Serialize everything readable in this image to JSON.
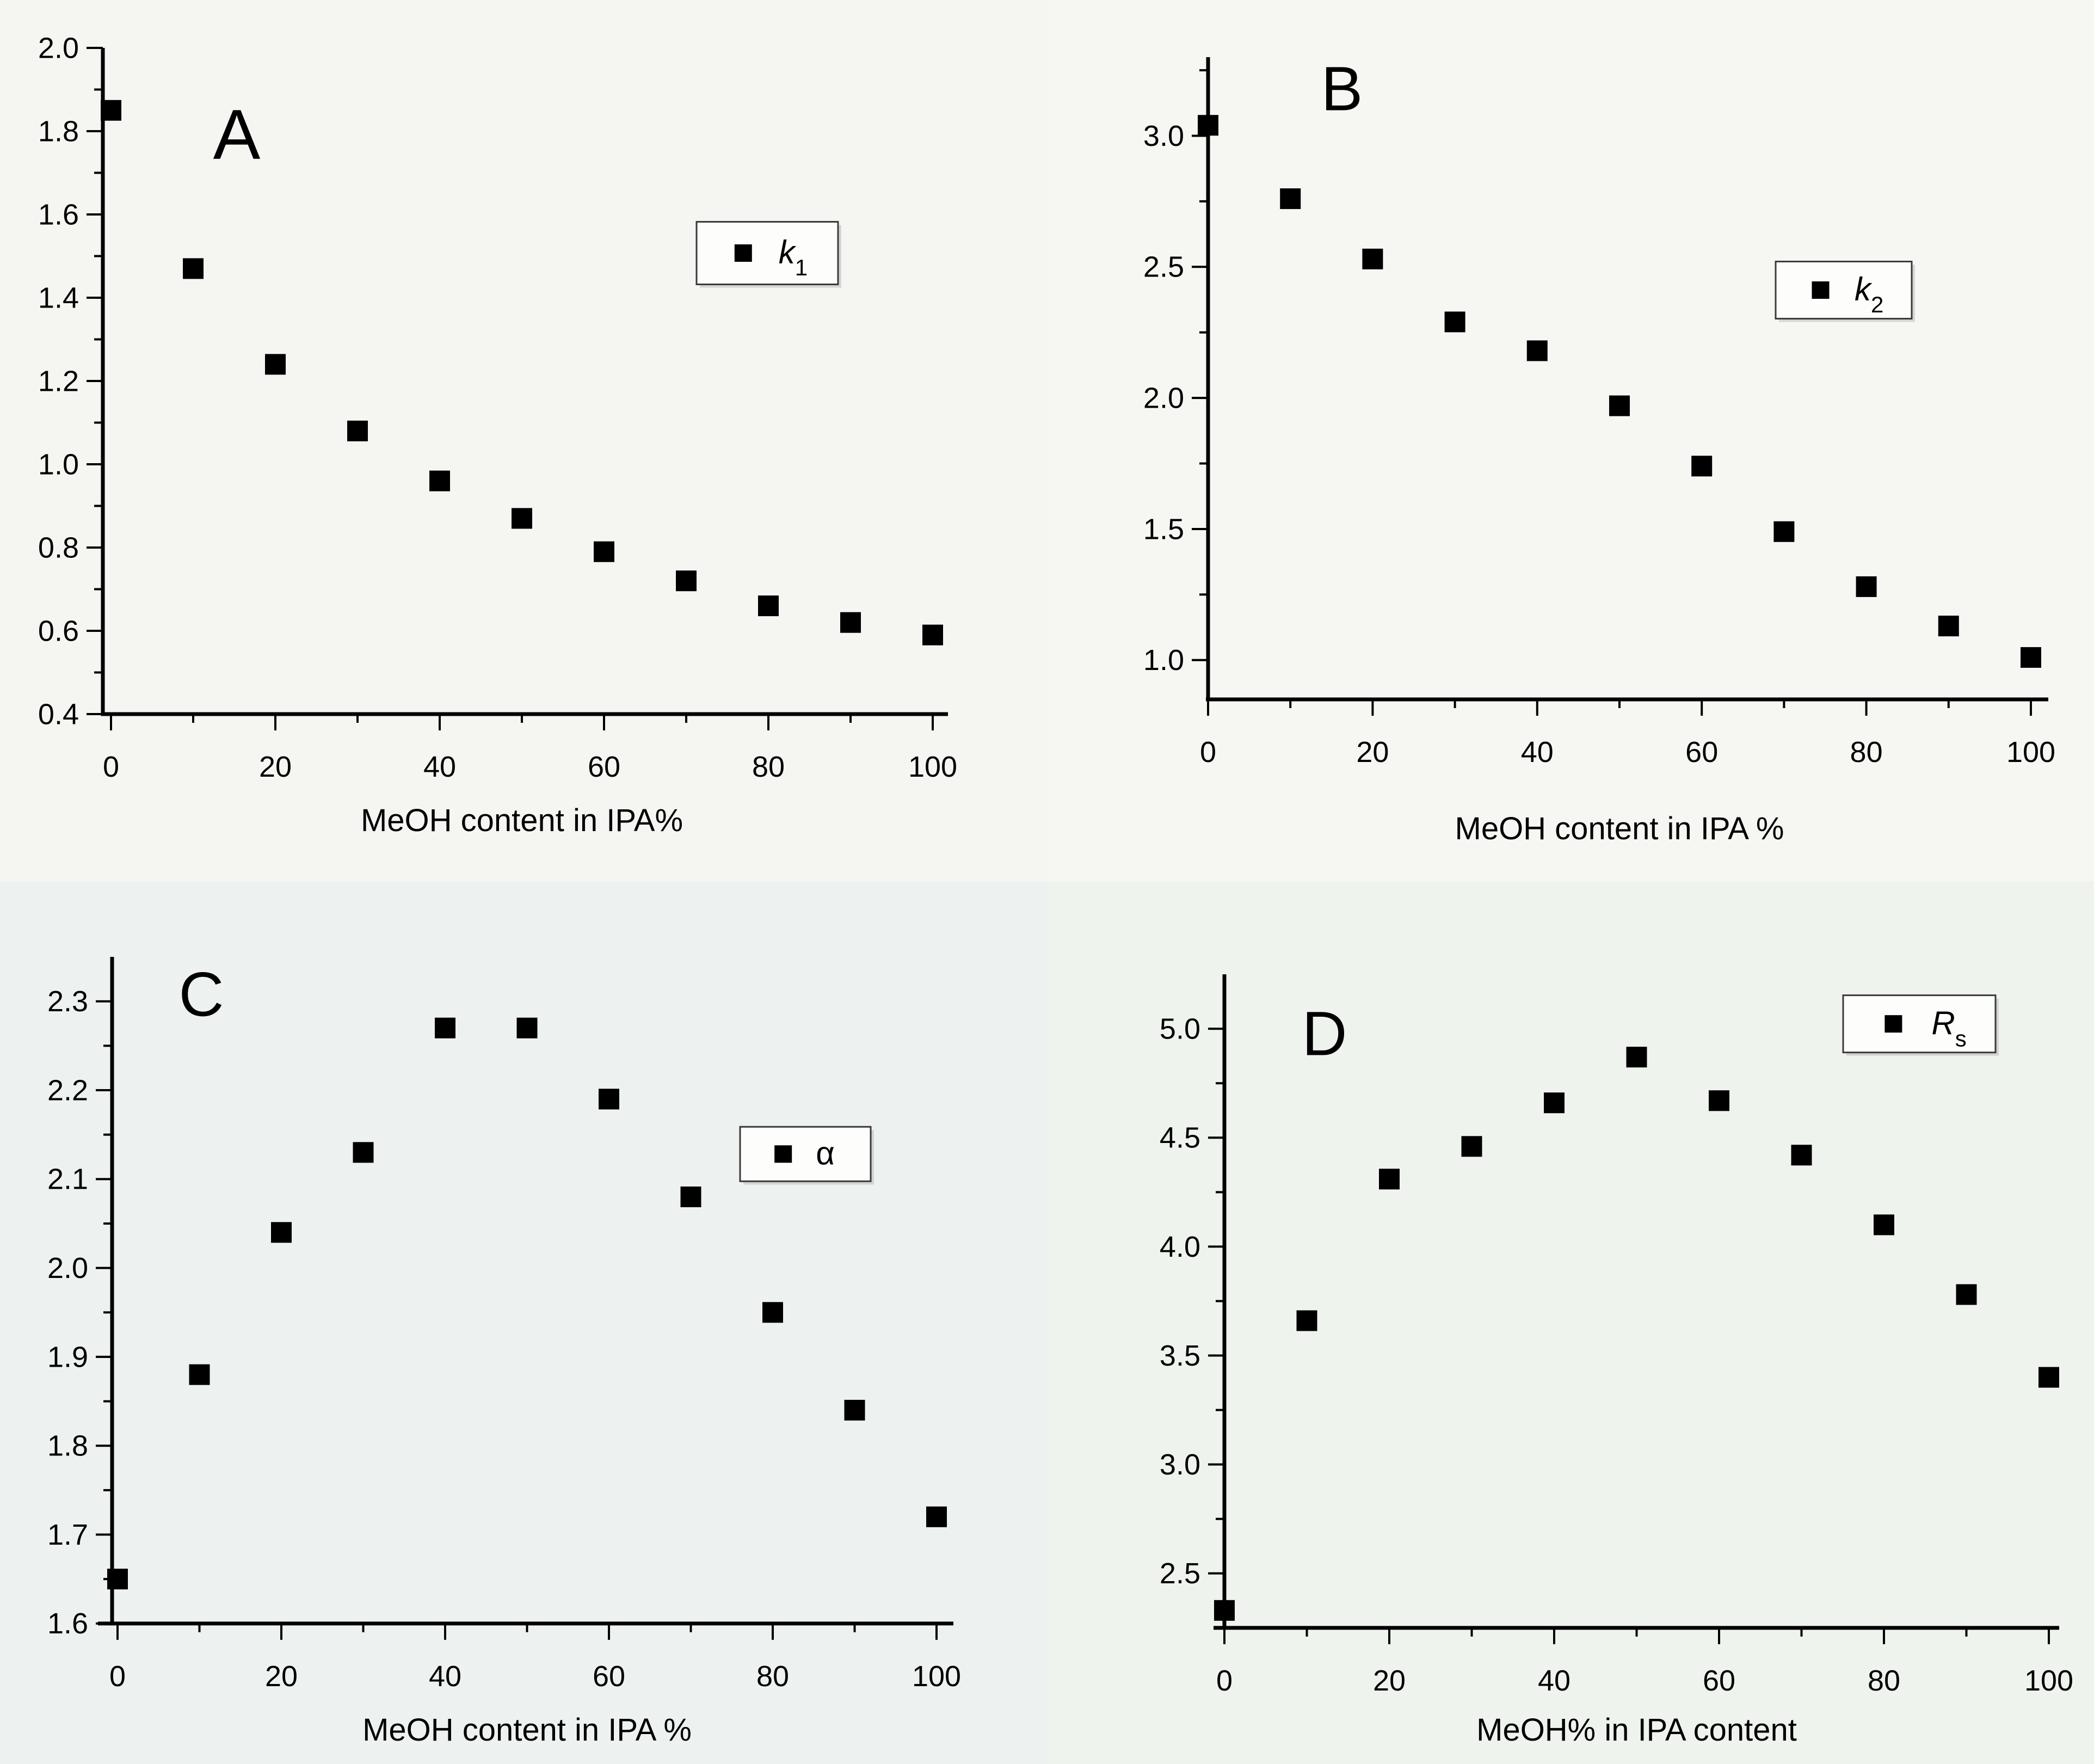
{
  "chart_data": [
    {
      "type": "scatter",
      "panel_label": "A",
      "legend": {
        "main": "k",
        "sub": "1",
        "italic": true
      },
      "xlabel": "MeOH content in IPA%",
      "x": [
        0,
        10,
        20,
        30,
        40,
        50,
        60,
        70,
        80,
        90,
        100
      ],
      "y": [
        1.85,
        1.47,
        1.24,
        1.08,
        0.96,
        0.87,
        0.79,
        0.72,
        0.66,
        0.62,
        0.59
      ],
      "xlim": [
        0,
        100
      ],
      "ylim_draw": [
        0.4,
        2.0
      ],
      "x_ticks": [
        0,
        20,
        40,
        60,
        80,
        100
      ],
      "x_tick_labels": [
        "0",
        "20",
        "40",
        "60",
        "80",
        "100"
      ],
      "x_minor_ticks": [
        10,
        30,
        50,
        70,
        90
      ],
      "y_ticks": [
        0.4,
        0.6,
        0.8,
        1.0,
        1.2,
        1.4,
        1.6,
        1.8,
        2.0
      ],
      "y_tick_labels": [
        "0.4",
        "0.6",
        "0.8",
        "1.0",
        "1.2",
        "1.4",
        "1.6",
        "1.8",
        "2.0"
      ],
      "y_minor_ticks": [
        0.5,
        0.7,
        0.9,
        1.1,
        1.3,
        1.5,
        1.7,
        1.9
      ],
      "grid": false,
      "legend_position": "upper-right-inside",
      "marker": "square",
      "marker_color": "#000000",
      "bg_color": "#f5f5f2"
    },
    {
      "type": "scatter",
      "panel_label": "B",
      "legend": {
        "main": "k",
        "sub": "2",
        "italic": true
      },
      "xlabel": "MeOH content in IPA %",
      "x": [
        0,
        10,
        20,
        30,
        40,
        50,
        60,
        70,
        80,
        90,
        100
      ],
      "y": [
        3.04,
        2.76,
        2.53,
        2.29,
        2.18,
        1.97,
        1.74,
        1.49,
        1.28,
        1.13,
        1.01
      ],
      "xlim": [
        0,
        100
      ],
      "ylim_draw": [
        0.85,
        3.3
      ],
      "x_ticks": [
        0,
        20,
        40,
        60,
        80,
        100
      ],
      "x_tick_labels": [
        "0",
        "20",
        "40",
        "60",
        "80",
        "100"
      ],
      "x_minor_ticks": [
        10,
        30,
        50,
        70,
        90
      ],
      "y_ticks": [
        1.0,
        1.5,
        2.0,
        2.5,
        3.0
      ],
      "y_tick_labels": [
        "1.0",
        "1.5",
        "2.0",
        "2.5",
        "3.0"
      ],
      "y_minor_ticks": [
        1.25,
        1.75,
        2.25,
        2.75,
        3.25
      ],
      "grid": false,
      "legend_position": "right-inside",
      "marker": "square",
      "marker_color": "#000000",
      "bg_color": "#f6f6f3"
    },
    {
      "type": "scatter",
      "panel_label": "C",
      "legend": {
        "main": "α",
        "sub": "",
        "italic": false
      },
      "xlabel": "MeOH content in IPA %",
      "x": [
        0,
        10,
        20,
        30,
        40,
        50,
        60,
        70,
        80,
        90,
        100
      ],
      "y": [
        1.65,
        1.88,
        2.04,
        2.13,
        2.27,
        2.27,
        2.19,
        2.08,
        1.95,
        1.84,
        1.72
      ],
      "xlim": [
        0,
        100
      ],
      "ylim_draw": [
        1.6,
        2.35
      ],
      "x_ticks": [
        0,
        20,
        40,
        60,
        80,
        100
      ],
      "x_tick_labels": [
        "0",
        "20",
        "40",
        "60",
        "80",
        "100"
      ],
      "x_minor_ticks": [
        10,
        30,
        50,
        70,
        90
      ],
      "y_ticks": [
        1.6,
        1.7,
        1.8,
        1.9,
        2.0,
        2.1,
        2.2,
        2.3
      ],
      "y_tick_labels": [
        "1.6",
        "1.7",
        "1.8",
        "1.9",
        "2.0",
        "2.1",
        "2.2",
        "2.3"
      ],
      "y_minor_ticks": [
        1.65,
        1.75,
        1.85,
        1.95,
        2.05,
        2.15,
        2.25
      ],
      "grid": false,
      "legend_position": "right-inside",
      "marker": "square",
      "marker_color": "#000000",
      "bg_color": "#edf2f1"
    },
    {
      "type": "scatter",
      "panel_label": "D",
      "legend": {
        "main": "R",
        "sub": "s",
        "italic": true
      },
      "xlabel": "MeOH% in IPA content",
      "x": [
        0,
        10,
        20,
        30,
        40,
        50,
        60,
        70,
        80,
        90,
        100
      ],
      "y": [
        2.33,
        3.66,
        4.31,
        4.46,
        4.66,
        4.87,
        4.67,
        4.42,
        4.1,
        3.78,
        3.4
      ],
      "xlim": [
        0,
        100
      ],
      "ylim_draw": [
        2.25,
        5.25
      ],
      "x_ticks": [
        0,
        20,
        40,
        60,
        80,
        100
      ],
      "x_tick_labels": [
        "0",
        "20",
        "40",
        "60",
        "80",
        "100"
      ],
      "x_minor_ticks": [
        10,
        30,
        50,
        70,
        90
      ],
      "y_ticks": [
        2.5,
        3.0,
        3.5,
        4.0,
        4.5,
        5.0
      ],
      "y_tick_labels": [
        "2.5",
        "3.0",
        "3.5",
        "4.0",
        "4.5",
        "5.0"
      ],
      "y_minor_ticks": [
        2.75,
        3.25,
        3.75,
        4.25,
        4.75
      ],
      "grid": false,
      "legend_position": "upper-right-inside",
      "marker": "square",
      "marker_color": "#000000",
      "bg_color": "#eff3ee"
    }
  ]
}
